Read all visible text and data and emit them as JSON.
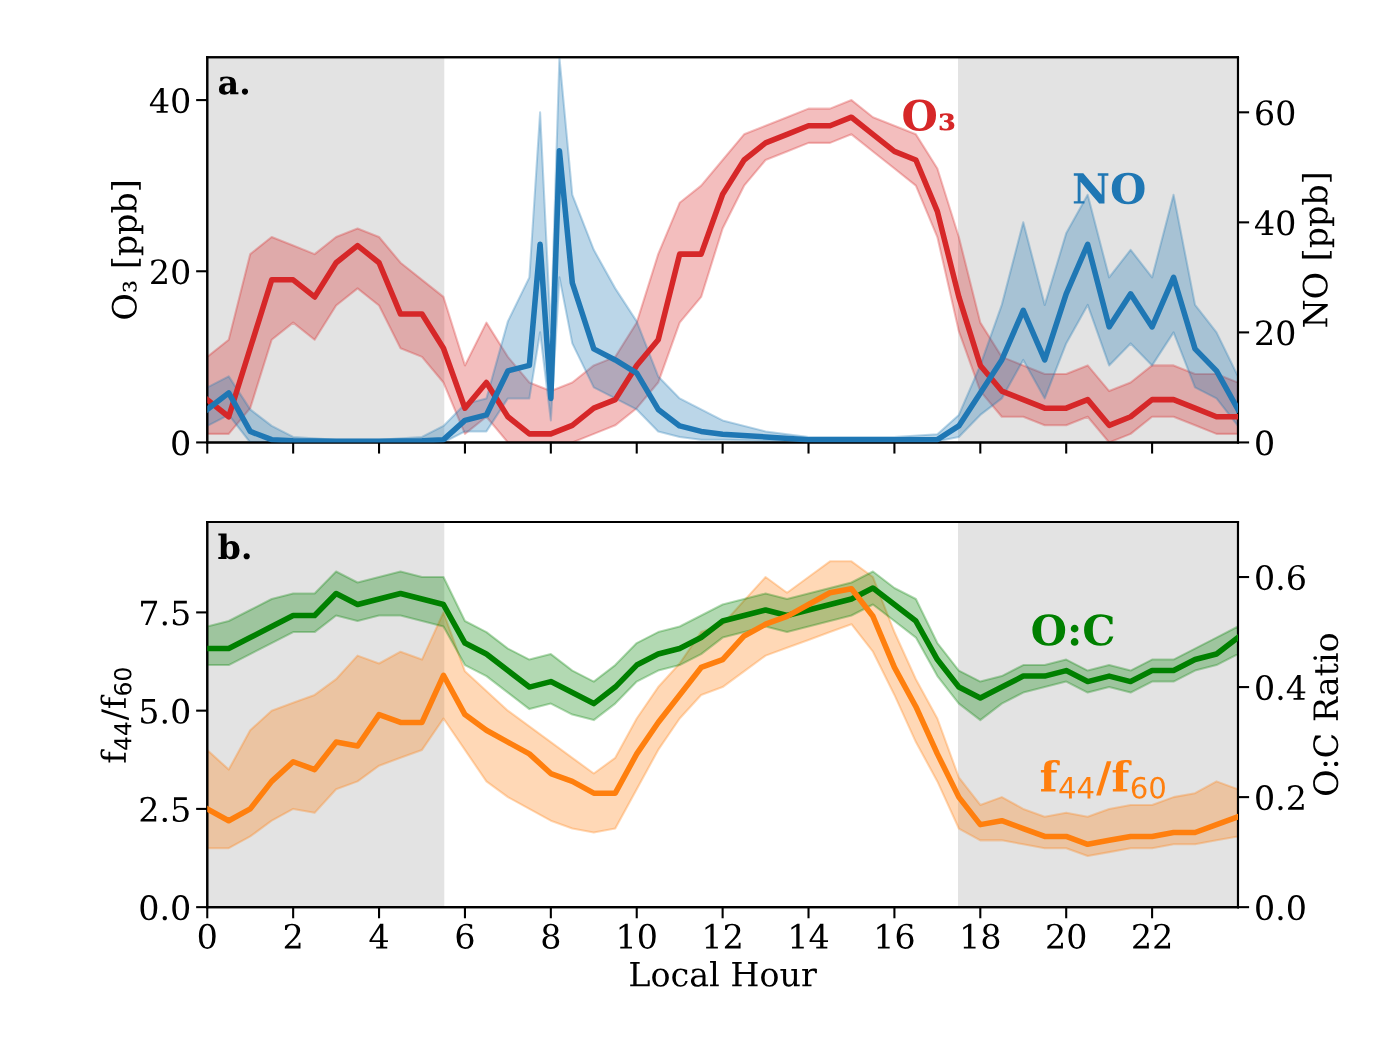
{
  "chart_data": [
    {
      "type": "line",
      "x": [
        0,
        0.5,
        1,
        1.5,
        2,
        2.5,
        3,
        3.5,
        4,
        4.5,
        5,
        5.5,
        6,
        6.5,
        7,
        7.5,
        8,
        8.5,
        9,
        9.5,
        10,
        10.5,
        11,
        11.5,
        12,
        12.5,
        13,
        13.5,
        14,
        14.5,
        15,
        15.5,
        16,
        16.5,
        17,
        17.5,
        18,
        18.5,
        19,
        19.5,
        20,
        20.5,
        21,
        21.5,
        22,
        22.5,
        23,
        23.5,
        24
      ],
      "ylabel": "O₃ [ppb]",
      "y2label": "NO [ppb]",
      "annotations": [
        "a."
      ],
      "xlim": [
        0,
        24
      ],
      "xticks": [
        0,
        2,
        4,
        6,
        8,
        10,
        12,
        14,
        16,
        18,
        20,
        22
      ],
      "ylim": [
        0,
        45
      ],
      "yticks": [
        0,
        20,
        40
      ],
      "y2lim": [
        0,
        70
      ],
      "y2ticks": [
        0,
        20,
        40,
        60
      ],
      "tick_labels": "y",
      "bands": [
        {
          "axis": "x",
          "from": 0,
          "to": 5.5,
          "color": "#e3e3e3"
        },
        {
          "axis": "x",
          "from": 17.5,
          "to": 24,
          "color": "#e3e3e3"
        }
      ],
      "series": [
        {
          "name": "O₃",
          "color": "#d62728",
          "axis": "y",
          "values": [
            5,
            3,
            11,
            19,
            19,
            17,
            21,
            23,
            21,
            15,
            15,
            11,
            4,
            7,
            3,
            1,
            1,
            2,
            4,
            5,
            9,
            12,
            22,
            22,
            29,
            33,
            35,
            36,
            37,
            37,
            38,
            36,
            34,
            33,
            27,
            17,
            9,
            6,
            5,
            4,
            4,
            5,
            2,
            3,
            5,
            5,
            4,
            3,
            3
          ],
          "lower": [
            1,
            1,
            4,
            12,
            14,
            12,
            16,
            18,
            16,
            11,
            10,
            7,
            1,
            3,
            0,
            0,
            0,
            0,
            1,
            2,
            4,
            7,
            14,
            17,
            25,
            30,
            33,
            34,
            35,
            35,
            36,
            34,
            32,
            30,
            24,
            13,
            6,
            3,
            3,
            2,
            2,
            3,
            0,
            1,
            3,
            3,
            2,
            1,
            1
          ],
          "upper": [
            10,
            12,
            22,
            24,
            23,
            22,
            24,
            25,
            24,
            21,
            19,
            17,
            9,
            14,
            10,
            7,
            6,
            7,
            9,
            10,
            14,
            22,
            28,
            30,
            33,
            36,
            37,
            38,
            39,
            39,
            40,
            38,
            37,
            36,
            32,
            24,
            14,
            10,
            9,
            8,
            8,
            9,
            6,
            7,
            9,
            9,
            8,
            8,
            7
          ]
        },
        {
          "name": "NO",
          "color": "#1f77b4",
          "axis": "y2",
          "x": [
            0,
            0.5,
            1,
            1.5,
            2,
            3,
            4,
            5,
            5.5,
            6,
            6.5,
            7,
            7.5,
            7.75,
            8,
            8.2,
            8.5,
            9,
            9.5,
            10,
            10.5,
            11,
            11.5,
            12,
            13,
            14,
            15,
            16,
            17,
            17.5,
            18,
            18.5,
            19,
            19.5,
            20,
            20.5,
            21,
            21.5,
            22,
            22.5,
            23,
            23.5,
            24
          ],
          "values": [
            6,
            9,
            2,
            0.5,
            0.3,
            0.2,
            0.2,
            0.3,
            0.5,
            4,
            5,
            13,
            14,
            36,
            8,
            53,
            29,
            17,
            15,
            12.6,
            6,
            3,
            2,
            1.5,
            1,
            0.5,
            0.5,
            0.5,
            0.5,
            3,
            9,
            15,
            24,
            15,
            27,
            36,
            21,
            27,
            21,
            30,
            17,
            13,
            6
          ],
          "lower": [
            3,
            5,
            0,
            0,
            0,
            0,
            0,
            0,
            0,
            2,
            2,
            8,
            8,
            20,
            4,
            30,
            18,
            10,
            8,
            6,
            2,
            1,
            0.5,
            0.5,
            0.3,
            0.2,
            0.2,
            0.2,
            0.2,
            1,
            5,
            8,
            15,
            8,
            18,
            25,
            14,
            18,
            14,
            20,
            10,
            8,
            3
          ],
          "upper": [
            10,
            12,
            6,
            3,
            1,
            0.5,
            0.5,
            1,
            3,
            7,
            8,
            22,
            30,
            60,
            20,
            70,
            45,
            35,
            28,
            22,
            12,
            8,
            6,
            4,
            2,
            1,
            1,
            1,
            1.5,
            5,
            14,
            25,
            40,
            25,
            38,
            45,
            30,
            35,
            30,
            45,
            25,
            20,
            12
          ]
        }
      ]
    },
    {
      "type": "line",
      "x": [
        0,
        0.5,
        1,
        1.5,
        2,
        2.5,
        3,
        3.5,
        4,
        4.5,
        5,
        5.5,
        6,
        6.5,
        7,
        7.5,
        8,
        8.5,
        9,
        9.5,
        10,
        10.5,
        11,
        11.5,
        12,
        12.5,
        13,
        13.5,
        14,
        14.5,
        15,
        15.5,
        16,
        16.5,
        17,
        17.5,
        18,
        18.5,
        19,
        19.5,
        20,
        20.5,
        21,
        21.5,
        22,
        22.5,
        23,
        23.5,
        24
      ],
      "xlabel": "Local Hour",
      "ylabel": "f$_{44}$/f$_{60}$",
      "y2label": "O:C Ratio",
      "annotations": [
        "b."
      ],
      "xlim": [
        0,
        24
      ],
      "xticks": [
        0,
        2,
        4,
        6,
        8,
        10,
        12,
        14,
        16,
        18,
        20,
        22
      ],
      "ylim": [
        0,
        9.8
      ],
      "yticks": [
        {
          "value": 0,
          "label": "0.0"
        },
        2.5,
        {
          "value": 5,
          "label": "5.0"
        },
        7.5
      ],
      "y2lim": [
        0,
        0.7
      ],
      "y2ticks": [
        {
          "value": 0,
          "label": "0.0"
        },
        0.2,
        0.4,
        0.6
      ],
      "bands": [
        {
          "axis": "x",
          "from": 0,
          "to": 5.5,
          "color": "#e3e3e3"
        },
        {
          "axis": "x",
          "from": 17.5,
          "to": 24,
          "color": "#e3e3e3"
        }
      ],
      "series": [
        {
          "name": "O:C",
          "color": "#008000",
          "axis": "y2",
          "values": [
            0.47,
            0.47,
            0.49,
            0.51,
            0.53,
            0.53,
            0.57,
            0.55,
            0.56,
            0.57,
            0.56,
            0.55,
            0.48,
            0.46,
            0.43,
            0.4,
            0.41,
            0.39,
            0.37,
            0.4,
            0.44,
            0.46,
            0.47,
            0.49,
            0.52,
            0.53,
            0.54,
            0.53,
            0.54,
            0.55,
            0.56,
            0.58,
            0.55,
            0.52,
            0.45,
            0.4,
            0.38,
            0.4,
            0.42,
            0.42,
            0.43,
            0.41,
            0.42,
            0.41,
            0.43,
            0.43,
            0.45,
            0.46,
            0.49
          ],
          "lower": [
            0.44,
            0.44,
            0.46,
            0.48,
            0.5,
            0.5,
            0.53,
            0.52,
            0.53,
            0.53,
            0.52,
            0.51,
            0.44,
            0.42,
            0.39,
            0.36,
            0.37,
            0.35,
            0.34,
            0.37,
            0.41,
            0.43,
            0.44,
            0.46,
            0.49,
            0.5,
            0.51,
            0.5,
            0.51,
            0.52,
            0.53,
            0.55,
            0.52,
            0.49,
            0.42,
            0.37,
            0.34,
            0.37,
            0.39,
            0.4,
            0.41,
            0.39,
            0.4,
            0.39,
            0.41,
            0.41,
            0.43,
            0.44,
            0.46
          ],
          "upper": [
            0.51,
            0.52,
            0.54,
            0.56,
            0.57,
            0.57,
            0.61,
            0.59,
            0.6,
            0.61,
            0.6,
            0.6,
            0.52,
            0.5,
            0.47,
            0.45,
            0.46,
            0.43,
            0.41,
            0.44,
            0.48,
            0.5,
            0.51,
            0.53,
            0.55,
            0.56,
            0.57,
            0.56,
            0.57,
            0.58,
            0.59,
            0.61,
            0.58,
            0.56,
            0.48,
            0.43,
            0.41,
            0.42,
            0.44,
            0.44,
            0.45,
            0.43,
            0.44,
            0.43,
            0.45,
            0.45,
            0.47,
            0.49,
            0.51
          ]
        },
        {
          "name": "f$_{44}$/f$_{60}$",
          "color": "#ff7f0e",
          "axis": "y",
          "values": [
            2.5,
            2.2,
            2.5,
            3.2,
            3.7,
            3.5,
            4.2,
            4.1,
            4.9,
            4.7,
            4.7,
            5.9,
            4.9,
            4.5,
            4.2,
            3.9,
            3.4,
            3.2,
            2.9,
            2.9,
            3.9,
            4.7,
            5.4,
            6.1,
            6.3,
            6.9,
            7.2,
            7.4,
            7.7,
            8.0,
            8.1,
            7.4,
            6.1,
            5.1,
            3.9,
            2.8,
            2.1,
            2.2,
            2.0,
            1.8,
            1.8,
            1.6,
            1.7,
            1.8,
            1.8,
            1.9,
            1.9,
            2.1,
            2.3
          ],
          "lower": [
            1.5,
            1.5,
            1.8,
            2.2,
            2.5,
            2.4,
            3.0,
            3.2,
            3.6,
            3.8,
            4.0,
            4.8,
            4.0,
            3.2,
            2.8,
            2.5,
            2.2,
            2.0,
            1.9,
            2.0,
            3.0,
            4.0,
            4.8,
            5.4,
            5.6,
            6.0,
            6.4,
            6.6,
            6.8,
            7.0,
            7.2,
            6.5,
            5.4,
            4.2,
            3.2,
            2.0,
            1.7,
            1.7,
            1.6,
            1.5,
            1.5,
            1.3,
            1.4,
            1.5,
            1.5,
            1.6,
            1.6,
            1.7,
            1.8
          ],
          "upper": [
            4.0,
            3.5,
            4.5,
            5.0,
            5.2,
            5.4,
            5.8,
            6.4,
            6.2,
            6.5,
            6.3,
            7.5,
            6.0,
            5.5,
            5.0,
            4.6,
            4.2,
            3.8,
            3.4,
            3.8,
            4.8,
            5.6,
            6.2,
            7.0,
            7.2,
            7.8,
            8.4,
            8.0,
            8.4,
            8.8,
            8.8,
            8.4,
            7.0,
            5.8,
            4.8,
            3.3,
            2.6,
            2.8,
            2.5,
            2.3,
            2.4,
            2.3,
            2.5,
            2.6,
            2.6,
            2.8,
            2.9,
            3.2,
            3.0
          ]
        }
      ]
    }
  ]
}
